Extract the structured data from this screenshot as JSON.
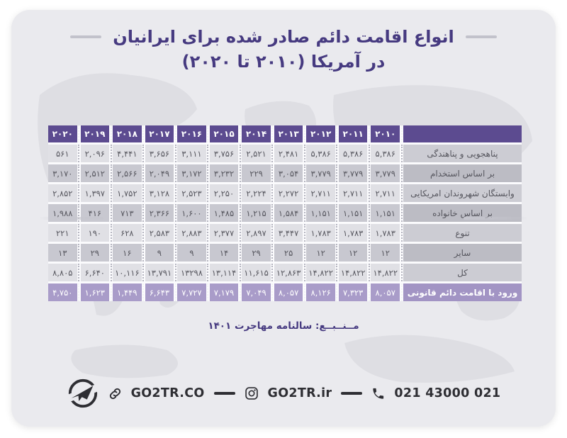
{
  "colors": {
    "card_bg": "#eaeaee",
    "map_watermark": "#dedee3",
    "title": "#463a80",
    "header_purple": "#5c4b90",
    "highlight_row_purple": "#a99cc9",
    "row_light": "#e0e0e5",
    "row_dark": "#c8c8d0",
    "footer_ink": "#2e2e33"
  },
  "title": {
    "line1": "انواع اقامت دائم صادر شده برای ایرانیان",
    "line2": "در آمریکا (۲۰۱۰ تا ۲۰۲۰)"
  },
  "table": {
    "years_display": [
      "۲۰۲۰",
      "۲۰۱۹",
      "۲۰۱۸",
      "۲۰۱۷",
      "۲۰۱۶",
      "۲۰۱۵",
      "۲۰۱۴",
      "۲۰۱۳",
      "۲۰۱۲",
      "۲۰۱۱",
      "۲۰۱۰"
    ],
    "rows": [
      {
        "label": "پناهجویی و پناهندگی",
        "values": [
          "۵۶۱",
          "۲,۰۹۶",
          "۴,۴۴۱",
          "۳,۶۵۶",
          "۳,۱۱۱",
          "۳,۷۵۶",
          "۲,۵۲۱",
          "۲,۴۸۱",
          "۵,۳۸۶",
          "۵,۳۸۶",
          "۵,۳۸۶"
        ],
        "highlight": false
      },
      {
        "label": "بر اساس استخدام",
        "values": [
          "۳,۱۷۰",
          "۲,۵۱۲",
          "۲,۵۶۶",
          "۲,۰۴۹",
          "۳,۱۷۲",
          "۳,۲۳۲",
          "۲۲۹",
          "۳,۰۵۴",
          "۳,۷۷۹",
          "۳,۷۷۹",
          "۳,۷۷۹"
        ],
        "highlight": false
      },
      {
        "label": "وابستگان شهروندان امریکایی",
        "values": [
          "۲,۸۵۲",
          "۱,۳۹۷",
          "۱,۷۵۲",
          "۳,۱۲۸",
          "۲,۵۲۳",
          "۲,۲۵۰",
          "۲,۲۲۴",
          "۲,۲۷۲",
          "۲,۷۱۱",
          "۲,۷۱۱",
          "۲,۷۱۱"
        ],
        "highlight": false
      },
      {
        "label": "بر اساس خانواده",
        "values": [
          "۱,۹۸۸",
          "۴۱۶",
          "۷۱۳",
          "۲,۳۶۶",
          "۱,۶۰۰",
          "۱,۴۸۵",
          "۱,۲۱۵",
          "۱,۵۸۴",
          "۱,۱۵۱",
          "۱,۱۵۱",
          "۱,۱۵۱"
        ],
        "highlight": false
      },
      {
        "label": "تنوع",
        "values": [
          "۲۲۱",
          "۱۹۰",
          "۶۲۸",
          "۲,۵۸۳",
          "۲,۸۸۳",
          "۲,۳۷۷",
          "۲,۸۹۷",
          "۳,۴۴۷",
          "۱,۷۸۳",
          "۱,۷۸۳",
          "۱,۷۸۳"
        ],
        "highlight": false
      },
      {
        "label": "سایر",
        "values": [
          "۱۳",
          "۲۹",
          "۱۶",
          "۹",
          "۹",
          "۱۴",
          "۲۹",
          "۲۵",
          "۱۲",
          "۱۲",
          "۱۲"
        ],
        "highlight": false
      },
      {
        "label": "کل",
        "values": [
          "۸,۸۰۵",
          "۶,۶۴۰",
          "۱۰,۱۱۶",
          "۱۳,۷۹۱",
          "۱۳۲۹۸",
          "۱۳,۱۱۴",
          "۱۱,۶۱۵",
          "۱۲,۸۶۳",
          "۱۴,۸۲۲",
          "۱۴,۸۲۲",
          "۱۴,۸۲۲"
        ],
        "highlight": false
      },
      {
        "label": "ورود با اقامت دائم قانونی",
        "values": [
          "۴,۷۵۰",
          "۱,۶۲۳",
          "۱,۴۴۹",
          "۶,۶۴۳",
          "۷,۷۲۷",
          "۷,۱۷۹",
          "۷,۰۴۹",
          "۸,۰۵۷",
          "۸,۱۲۶",
          "۷,۳۲۳",
          "۸,۰۵۷"
        ],
        "highlight": true
      }
    ]
  },
  "source": {
    "text": "مــنــبــع: سالنامه مهاجرت ۱۴۰۱"
  },
  "footer": {
    "website": "GO2TR.CO",
    "instagram": "GO2TR.ir",
    "phone": "021 43000 021",
    "icons": {
      "logo": "go2tr-logo",
      "link": "link-icon",
      "instagram": "instagram-icon",
      "phone": "phone-icon"
    }
  },
  "chart_data": {
    "type": "table",
    "title": "انواع اقامت دائم صادر شده برای ایرانیان در آمریکا (۲۰۱۰ تا ۲۰۲۰)",
    "columns": [
      "2010",
      "2011",
      "2012",
      "2013",
      "2014",
      "2015",
      "2016",
      "2017",
      "2018",
      "2019",
      "2020"
    ],
    "rows": [
      {
        "label": "پناهجویی و پناهندگی",
        "values": [
          5386,
          5386,
          5386,
          2481,
          2521,
          3756,
          3111,
          3656,
          4441,
          2096,
          561
        ]
      },
      {
        "label": "بر اساس استخدام",
        "values": [
          3779,
          3779,
          3779,
          3054,
          229,
          3232,
          3172,
          2049,
          2566,
          2512,
          3170
        ]
      },
      {
        "label": "وابستگان شهروندان امریکایی",
        "values": [
          2711,
          2711,
          2711,
          2272,
          2224,
          2250,
          2523,
          3128,
          1752,
          1397,
          2852
        ]
      },
      {
        "label": "بر اساس خانواده",
        "values": [
          1151,
          1151,
          1151,
          1584,
          1215,
          1485,
          1600,
          2366,
          713,
          416,
          1988
        ]
      },
      {
        "label": "تنوع",
        "values": [
          1783,
          1783,
          1783,
          3447,
          2897,
          2377,
          2883,
          2583,
          628,
          190,
          221
        ]
      },
      {
        "label": "سایر",
        "values": [
          12,
          12,
          12,
          25,
          29,
          14,
          9,
          9,
          16,
          29,
          13
        ]
      },
      {
        "label": "کل",
        "values": [
          14822,
          14822,
          14822,
          12863,
          11615,
          13114,
          13298,
          13791,
          10116,
          6640,
          8805
        ]
      },
      {
        "label": "ورود با اقامت دائم قانونی",
        "values": [
          8057,
          7323,
          8126,
          8057,
          7049,
          7179,
          7727,
          6643,
          1449,
          1623,
          4750
        ]
      }
    ],
    "source_note": "مــنــبــع: سالنامه مهاجرت ۱۴۰۱"
  }
}
